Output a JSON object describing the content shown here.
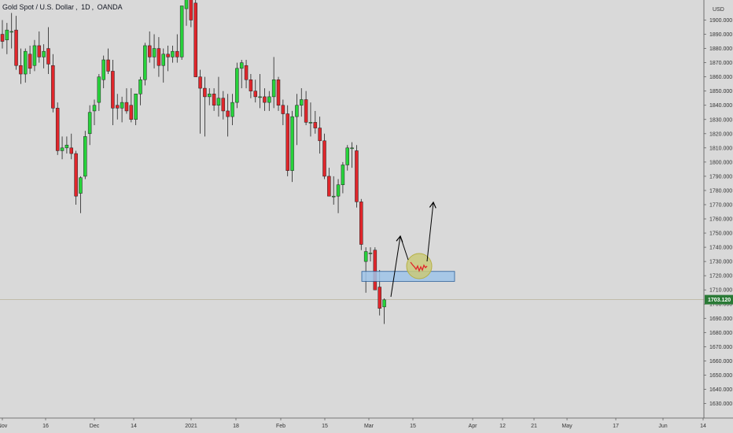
{
  "symbol": {
    "name": "Gold Spot / U.S. Dollar",
    "interval": "1D",
    "exchange": "OANDA"
  },
  "currency": "USD",
  "last_price": "1703.120",
  "colors": {
    "background": "#d9d9d9",
    "up": "#27d33b",
    "down": "#e0262b",
    "wick": "#222222",
    "last_price": "#2a7a36",
    "zone_fill": "#9dc3e8",
    "zone_stroke": "#2a5f9a",
    "circle_fill": "#c9c97a",
    "circle_stroke": "#b6b043",
    "squiggle": "#e0262b",
    "arrow": "#000000"
  },
  "chart_data": {
    "type": "candlestick",
    "ylim": [
      1620,
      1910
    ],
    "y_ticks": [
      "1630.000",
      "1640.000",
      "1650.000",
      "1660.000",
      "1670.000",
      "1680.000",
      "1690.000",
      "1700.000",
      "1710.000",
      "1720.000",
      "1730.000",
      "1740.000",
      "1750.000",
      "1760.000",
      "1770.000",
      "1780.000",
      "1790.000",
      "1800.000",
      "1810.000",
      "1820.000",
      "1830.000",
      "1840.000",
      "1850.000",
      "1860.000",
      "1870.000",
      "1880.000",
      "1890.000",
      "1900.000"
    ],
    "x_ticks": [
      "Nov",
      "16",
      "Dec",
      "14",
      "2021",
      "18",
      "Feb",
      "15",
      "Mar",
      "15",
      "Apr",
      "12",
      "21",
      "May",
      "17",
      "Jun",
      "14"
    ],
    "candles": [
      [
        1890,
        1900,
        1880,
        1885
      ],
      [
        1886,
        1898,
        1876,
        1893
      ],
      [
        1892,
        1905,
        1880,
        1892
      ],
      [
        1893,
        1903,
        1865,
        1868
      ],
      [
        1868,
        1880,
        1855,
        1862
      ],
      [
        1862,
        1880,
        1856,
        1878
      ],
      [
        1876,
        1882,
        1862,
        1866
      ],
      [
        1868,
        1886,
        1864,
        1882
      ],
      [
        1882,
        1892,
        1870,
        1874
      ],
      [
        1874,
        1883,
        1866,
        1878
      ],
      [
        1880,
        1895,
        1862,
        1869
      ],
      [
        1868,
        1876,
        1835,
        1838
      ],
      [
        1838,
        1842,
        1805,
        1808
      ],
      [
        1808,
        1818,
        1802,
        1810
      ],
      [
        1810,
        1818,
        1806,
        1812
      ],
      [
        1810,
        1820,
        1802,
        1806
      ],
      [
        1806,
        1808,
        1770,
        1776
      ],
      [
        1778,
        1790,
        1764,
        1789
      ],
      [
        1790,
        1822,
        1788,
        1818
      ],
      [
        1820,
        1840,
        1812,
        1835
      ],
      [
        1836,
        1844,
        1826,
        1840
      ],
      [
        1842,
        1862,
        1836,
        1860
      ],
      [
        1858,
        1875,
        1852,
        1872
      ],
      [
        1872,
        1880,
        1862,
        1864
      ],
      [
        1864,
        1872,
        1826,
        1838
      ],
      [
        1840,
        1848,
        1830,
        1838
      ],
      [
        1838,
        1846,
        1828,
        1842
      ],
      [
        1842,
        1852,
        1834,
        1836
      ],
      [
        1840,
        1852,
        1828,
        1830
      ],
      [
        1830,
        1848,
        1826,
        1848
      ],
      [
        1848,
        1860,
        1840,
        1858
      ],
      [
        1858,
        1884,
        1854,
        1882
      ],
      [
        1882,
        1892,
        1870,
        1874
      ],
      [
        1874,
        1890,
        1866,
        1880
      ],
      [
        1880,
        1888,
        1860,
        1868
      ],
      [
        1868,
        1880,
        1856,
        1876
      ],
      [
        1876,
        1882,
        1864,
        1874
      ],
      [
        1874,
        1882,
        1870,
        1878
      ],
      [
        1878,
        1890,
        1870,
        1874
      ],
      [
        1874,
        1910,
        1872,
        1910
      ],
      [
        1908,
        1930,
        1896,
        1920
      ],
      [
        1920,
        1925,
        1895,
        1900
      ],
      [
        1912,
        1930,
        1860,
        1860
      ],
      [
        1860,
        1865,
        1820,
        1852
      ],
      [
        1852,
        1860,
        1818,
        1846
      ],
      [
        1846,
        1852,
        1840,
        1848
      ],
      [
        1848,
        1852,
        1836,
        1840
      ],
      [
        1840,
        1860,
        1832,
        1845
      ],
      [
        1845,
        1850,
        1830,
        1836
      ],
      [
        1836,
        1848,
        1818,
        1832
      ],
      [
        1832,
        1848,
        1826,
        1842
      ],
      [
        1842,
        1870,
        1838,
        1866
      ],
      [
        1866,
        1872,
        1852,
        1870
      ],
      [
        1868,
        1872,
        1852,
        1858
      ],
      [
        1858,
        1862,
        1845,
        1850
      ],
      [
        1850,
        1858,
        1842,
        1846
      ],
      [
        1846,
        1862,
        1838,
        1846
      ],
      [
        1846,
        1852,
        1836,
        1842
      ],
      [
        1842,
        1850,
        1836,
        1846
      ],
      [
        1846,
        1874,
        1838,
        1858
      ],
      [
        1858,
        1860,
        1836,
        1840
      ],
      [
        1840,
        1844,
        1826,
        1834
      ],
      [
        1834,
        1840,
        1790,
        1794
      ],
      [
        1794,
        1836,
        1786,
        1832
      ],
      [
        1832,
        1848,
        1812,
        1840
      ],
      [
        1840,
        1852,
        1832,
        1844
      ],
      [
        1844,
        1850,
        1826,
        1828
      ],
      [
        1828,
        1842,
        1818,
        1828
      ],
      [
        1828,
        1836,
        1820,
        1824
      ],
      [
        1824,
        1832,
        1806,
        1815
      ],
      [
        1815,
        1820,
        1788,
        1790
      ],
      [
        1790,
        1796,
        1776,
        1776
      ],
      [
        1776,
        1790,
        1770,
        1776
      ],
      [
        1776,
        1788,
        1764,
        1784
      ],
      [
        1784,
        1800,
        1778,
        1798
      ],
      [
        1798,
        1812,
        1794,
        1810
      ],
      [
        1810,
        1814,
        1796,
        1810
      ],
      [
        1808,
        1812,
        1768,
        1772
      ],
      [
        1772,
        1774,
        1738,
        1742
      ],
      [
        1730,
        1740,
        1708,
        1737
      ],
      [
        1736,
        1740,
        1730,
        1736
      ],
      [
        1738,
        1740,
        1710,
        1710
      ],
      [
        1712,
        1724,
        1692,
        1697
      ],
      [
        1698,
        1704,
        1686,
        1703
      ]
    ],
    "zone": {
      "low": 1716,
      "high": 1723
    },
    "last_price": 1703.12
  }
}
